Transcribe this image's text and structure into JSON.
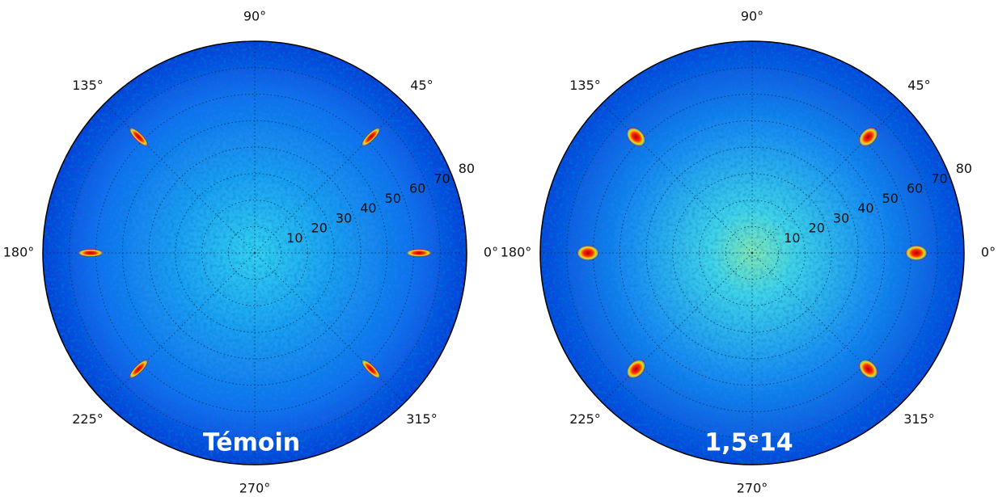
{
  "chart_data": [
    {
      "type": "polar",
      "label": "Témoin",
      "rlim": [
        0,
        80
      ],
      "rticks": [
        10,
        20,
        30,
        40,
        50,
        60,
        70,
        80
      ],
      "thetaticks": [
        {
          "value": 0,
          "label": "0°"
        },
        {
          "value": 45,
          "label": "45°"
        },
        {
          "value": 90,
          "label": "90°"
        },
        {
          "value": 135,
          "label": "135°"
        },
        {
          "value": 180,
          "label": "180°"
        },
        {
          "value": 225,
          "label": "225°"
        },
        {
          "value": 270,
          "label": "270°"
        },
        {
          "value": 315,
          "label": "315°"
        }
      ],
      "peaks": [
        {
          "theta": 0,
          "r": 62
        },
        {
          "theta": 45,
          "r": 62
        },
        {
          "theta": 135,
          "r": 62
        },
        {
          "theta": 180,
          "r": 62
        },
        {
          "theta": 225,
          "r": 62
        },
        {
          "theta": 315,
          "r": 62
        }
      ],
      "color": "#d40000"
    },
    {
      "type": "polar",
      "label": "1,5ᵉ14",
      "rlim": [
        0,
        80
      ],
      "rticks": [
        10,
        20,
        30,
        40,
        50,
        60,
        70,
        80
      ],
      "thetaticks": [
        {
          "value": 0,
          "label": "0°"
        },
        {
          "value": 45,
          "label": "45°"
        },
        {
          "value": 90,
          "label": "90°"
        },
        {
          "value": 135,
          "label": "135°"
        },
        {
          "value": 180,
          "label": "180°"
        },
        {
          "value": 225,
          "label": "225°"
        },
        {
          "value": 270,
          "label": "270°"
        },
        {
          "value": 315,
          "label": "315°"
        }
      ],
      "peaks": [
        {
          "theta": 0,
          "r": 62
        },
        {
          "theta": 45,
          "r": 62
        },
        {
          "theta": 135,
          "r": 62
        },
        {
          "theta": 180,
          "r": 62
        },
        {
          "theta": 225,
          "r": 62
        },
        {
          "theta": 315,
          "r": 62
        }
      ],
      "color": "#d40000"
    }
  ]
}
